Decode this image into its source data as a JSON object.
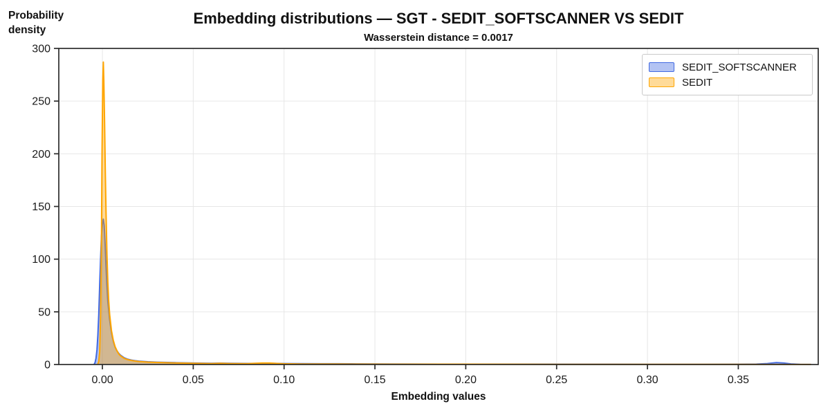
{
  "title": "Embedding distributions — SGT - SEDIT_SOFTSCANNER VS SEDIT",
  "subtitle": "Wasserstein distance = 0.0017",
  "chart_data": {
    "type": "area",
    "title": "Embedding distributions — SGT - SEDIT_SOFTSCANNER VS SEDIT",
    "subtitle": "Wasserstein distance = 0.0017",
    "xlabel": "Embedding values",
    "ylabel": "Probability density",
    "ylabel_lines": [
      "Probability",
      "density"
    ],
    "xlim": [
      -0.024,
      0.394
    ],
    "ylim": [
      0,
      300
    ],
    "xticks": [
      0.0,
      0.05,
      0.1,
      0.15,
      0.2,
      0.25,
      0.3,
      0.35
    ],
    "xtick_labels": [
      "0.00",
      "0.05",
      "0.10",
      "0.15",
      "0.20",
      "0.25",
      "0.30",
      "0.35"
    ],
    "yticks": [
      0,
      50,
      100,
      150,
      200,
      250,
      300
    ],
    "ytick_labels": [
      "0",
      "50",
      "100",
      "150",
      "200",
      "250",
      "300"
    ],
    "grid": true,
    "grid_color": "#e6e6e6",
    "spine_color": "#2b2b2b",
    "legend_position": "upper right",
    "series": [
      {
        "name": "SEDIT_SOFTSCANNER",
        "line_color": "#4169e1",
        "fill_opacity": 0.4,
        "peak": {
          "x": 0.001,
          "y": 138
        },
        "points": [
          [
            -0.0046,
            0
          ],
          [
            -0.004,
            2
          ],
          [
            -0.0035,
            6
          ],
          [
            -0.003,
            14
          ],
          [
            -0.0025,
            28
          ],
          [
            -0.002,
            48
          ],
          [
            -0.0015,
            75
          ],
          [
            -0.001,
            100
          ],
          [
            -0.0005,
            122
          ],
          [
            0.0,
            133
          ],
          [
            0.0005,
            138
          ],
          [
            0.001,
            132
          ],
          [
            0.0015,
            114
          ],
          [
            0.002,
            93
          ],
          [
            0.0025,
            75
          ],
          [
            0.003,
            60
          ],
          [
            0.004,
            42
          ],
          [
            0.005,
            30
          ],
          [
            0.006,
            22
          ],
          [
            0.007,
            16.5
          ],
          [
            0.008,
            13
          ],
          [
            0.009,
            10.5
          ],
          [
            0.01,
            8.8
          ],
          [
            0.012,
            6.4
          ],
          [
            0.014,
            5
          ],
          [
            0.016,
            4.2
          ],
          [
            0.018,
            3.6
          ],
          [
            0.02,
            3.2
          ],
          [
            0.025,
            2.6
          ],
          [
            0.03,
            2.2
          ],
          [
            0.04,
            1.8
          ],
          [
            0.05,
            1.4
          ],
          [
            0.06,
            1.2
          ],
          [
            0.065,
            1.3
          ],
          [
            0.07,
            1.2
          ],
          [
            0.08,
            1.0
          ],
          [
            0.088,
            1.2
          ],
          [
            0.093,
            1.1
          ],
          [
            0.1,
            0.9
          ],
          [
            0.11,
            0.8
          ],
          [
            0.12,
            0.75
          ],
          [
            0.13,
            0.7
          ],
          [
            0.14,
            0.6
          ],
          [
            0.15,
            0.5
          ],
          [
            0.17,
            0.4
          ],
          [
            0.2,
            0.35
          ],
          [
            0.23,
            0.3
          ],
          [
            0.26,
            0.25
          ],
          [
            0.3,
            0.2
          ],
          [
            0.33,
            0.2
          ],
          [
            0.35,
            0.25
          ],
          [
            0.36,
            0.4
          ],
          [
            0.366,
            0.9
          ],
          [
            0.371,
            1.8
          ],
          [
            0.375,
            1.4
          ],
          [
            0.379,
            0.6
          ],
          [
            0.384,
            0.2
          ],
          [
            0.39,
            0.05
          ]
        ]
      },
      {
        "name": "SEDIT",
        "line_color": "#ffa500",
        "fill_opacity": 0.4,
        "peak": {
          "x": 0.001,
          "y": 287
        },
        "points": [
          [
            -0.0026,
            0
          ],
          [
            -0.002,
            3
          ],
          [
            -0.0015,
            12
          ],
          [
            -0.001,
            45
          ],
          [
            -0.0005,
            120
          ],
          [
            -0.0002,
            200
          ],
          [
            0.0002,
            270
          ],
          [
            0.0005,
            287
          ],
          [
            0.0008,
            270
          ],
          [
            0.0012,
            230
          ],
          [
            0.0016,
            185
          ],
          [
            0.002,
            145
          ],
          [
            0.0025,
            105
          ],
          [
            0.003,
            78
          ],
          [
            0.0035,
            60
          ],
          [
            0.004,
            47
          ],
          [
            0.005,
            32
          ],
          [
            0.006,
            23
          ],
          [
            0.007,
            17
          ],
          [
            0.008,
            13
          ],
          [
            0.009,
            10
          ],
          [
            0.01,
            8.2
          ],
          [
            0.012,
            5.8
          ],
          [
            0.014,
            4.6
          ],
          [
            0.016,
            3.9
          ],
          [
            0.018,
            3.3
          ],
          [
            0.02,
            2.9
          ],
          [
            0.025,
            2.3
          ],
          [
            0.03,
            2.0
          ],
          [
            0.04,
            1.5
          ],
          [
            0.05,
            1.2
          ],
          [
            0.06,
            0.95
          ],
          [
            0.065,
            1.1
          ],
          [
            0.07,
            0.95
          ],
          [
            0.08,
            0.85
          ],
          [
            0.088,
            1.35
          ],
          [
            0.092,
            1.4
          ],
          [
            0.096,
            1.0
          ],
          [
            0.1,
            0.7
          ],
          [
            0.11,
            0.55
          ],
          [
            0.12,
            0.5
          ],
          [
            0.13,
            0.45
          ],
          [
            0.14,
            0.4
          ],
          [
            0.16,
            0.35
          ],
          [
            0.2,
            0.3
          ],
          [
            0.25,
            0.22
          ],
          [
            0.3,
            0.15
          ],
          [
            0.35,
            0.1
          ],
          [
            0.39,
            0.05
          ]
        ]
      }
    ]
  }
}
